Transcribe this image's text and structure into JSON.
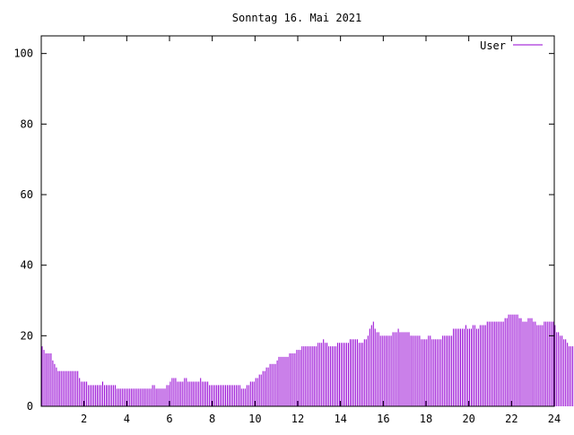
{
  "chart_data": {
    "type": "bar",
    "title": "Sonntag 16. Mai 2021",
    "xlabel": "",
    "ylabel": "",
    "xlim": [
      0,
      24
    ],
    "ylim": [
      0,
      105
    ],
    "x_ticks": [
      "2",
      "4",
      "6",
      "8",
      "10",
      "12",
      "14",
      "16",
      "18",
      "20",
      "22",
      "24"
    ],
    "y_ticks": [
      "0",
      "20",
      "40",
      "60",
      "80",
      "100"
    ],
    "grid": false,
    "legend_position": "top-right",
    "series_color": "#9400d3",
    "series": [
      {
        "name": "User",
        "bin_hours": 0.0833,
        "values": [
          17,
          16,
          15,
          15,
          15,
          15,
          13,
          12,
          11,
          10,
          10,
          10,
          10,
          10,
          10,
          10,
          10,
          10,
          10,
          10,
          10,
          8,
          7,
          7,
          7,
          7,
          6,
          6,
          6,
          6,
          6,
          6,
          6,
          6,
          7,
          6,
          6,
          6,
          6,
          6,
          6,
          6,
          5,
          5,
          5,
          5,
          5,
          5,
          5,
          5,
          5,
          5,
          5,
          5,
          5,
          5,
          5,
          5,
          5,
          5,
          5,
          5,
          6,
          6,
          5,
          5,
          5,
          5,
          5,
          5,
          6,
          6,
          7,
          8,
          8,
          8,
          7,
          7,
          7,
          7,
          8,
          8,
          7,
          7,
          7,
          7,
          7,
          7,
          7,
          8,
          7,
          7,
          7,
          7,
          6,
          6,
          6,
          6,
          6,
          6,
          6,
          6,
          6,
          6,
          6,
          6,
          6,
          6,
          6,
          6,
          6,
          6,
          5,
          5,
          5,
          6,
          6,
          7,
          7,
          7,
          8,
          8,
          9,
          9,
          10,
          10,
          11,
          11,
          12,
          12,
          12,
          12,
          13,
          14,
          14,
          14,
          14,
          14,
          14,
          15,
          15,
          15,
          15,
          16,
          16,
          16,
          17,
          17,
          17,
          17,
          17,
          17,
          17,
          17,
          17,
          18,
          18,
          18,
          19,
          18,
          18,
          17,
          17,
          17,
          17,
          17,
          18,
          18,
          18,
          18,
          18,
          18,
          18,
          19,
          19,
          19,
          19,
          19,
          18,
          18,
          18,
          19,
          19,
          20,
          22,
          23,
          24,
          22,
          21,
          21,
          20,
          20,
          20,
          20,
          20,
          20,
          20,
          21,
          21,
          21,
          22,
          21,
          21,
          21,
          21,
          21,
          21,
          20,
          20,
          20,
          20,
          20,
          20,
          19,
          19,
          19,
          19,
          20,
          20,
          19,
          19,
          19,
          19,
          19,
          19,
          20,
          20,
          20,
          20,
          20,
          20,
          22,
          22,
          22,
          22,
          22,
          22,
          22,
          23,
          22,
          22,
          22,
          23,
          23,
          22,
          22,
          23,
          23,
          23,
          23,
          24,
          24,
          24,
          24,
          24,
          24,
          24,
          24,
          24,
          24,
          25,
          25,
          26,
          26,
          26,
          26,
          26,
          26,
          25,
          25,
          24,
          24,
          24,
          25,
          25,
          25,
          24,
          24,
          23,
          23,
          23,
          23,
          24,
          24,
          24,
          24,
          24,
          24,
          23,
          21,
          21,
          20,
          20,
          19,
          19,
          18,
          17,
          17,
          17,
          17,
          16,
          15,
          15,
          14
        ]
      }
    ]
  }
}
